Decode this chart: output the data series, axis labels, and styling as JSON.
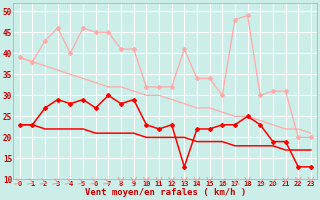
{
  "background_color": "#cceee8",
  "grid_color": "#ffffff",
  "title": "Vent moyen/en rafales ( km/h )",
  "x_values": [
    0,
    1,
    2,
    3,
    4,
    5,
    6,
    7,
    8,
    9,
    10,
    11,
    12,
    13,
    14,
    15,
    16,
    17,
    18,
    19,
    20,
    21,
    22,
    23
  ],
  "line_pink_jagged": [
    39,
    38,
    43,
    46,
    40,
    46,
    45,
    45,
    41,
    41,
    32,
    32,
    32,
    41,
    34,
    34,
    30,
    48,
    49,
    30,
    31,
    31,
    20,
    20
  ],
  "line_pink_trend": [
    39,
    38,
    37,
    36,
    35,
    34,
    33,
    32,
    32,
    31,
    30,
    30,
    29,
    28,
    27,
    27,
    26,
    25,
    25,
    24,
    23,
    22,
    22,
    21
  ],
  "line_red_jagged": [
    23,
    23,
    27,
    29,
    28,
    29,
    27,
    30,
    28,
    29,
    23,
    22,
    23,
    13,
    22,
    22,
    23,
    23,
    25,
    23,
    19,
    19,
    13,
    13
  ],
  "line_red_trend": [
    23,
    23,
    22,
    22,
    22,
    22,
    21,
    21,
    21,
    21,
    20,
    20,
    20,
    20,
    19,
    19,
    19,
    18,
    18,
    18,
    18,
    17,
    17,
    17
  ],
  "line_pink_color": "#ffaaaa",
  "line_red_color": "#ff0000",
  "arrow_color": "#ff8888",
  "arrow_angles": [
    45,
    45,
    45,
    45,
    45,
    45,
    45,
    45,
    0,
    0,
    0,
    0,
    0,
    0,
    0,
    0,
    315,
    315,
    0,
    315,
    315,
    0,
    0,
    0
  ],
  "ylim": [
    10,
    52
  ],
  "yticks": [
    10,
    15,
    20,
    25,
    30,
    35,
    40,
    45,
    50
  ],
  "figsize": [
    3.2,
    2.0
  ],
  "dpi": 100
}
